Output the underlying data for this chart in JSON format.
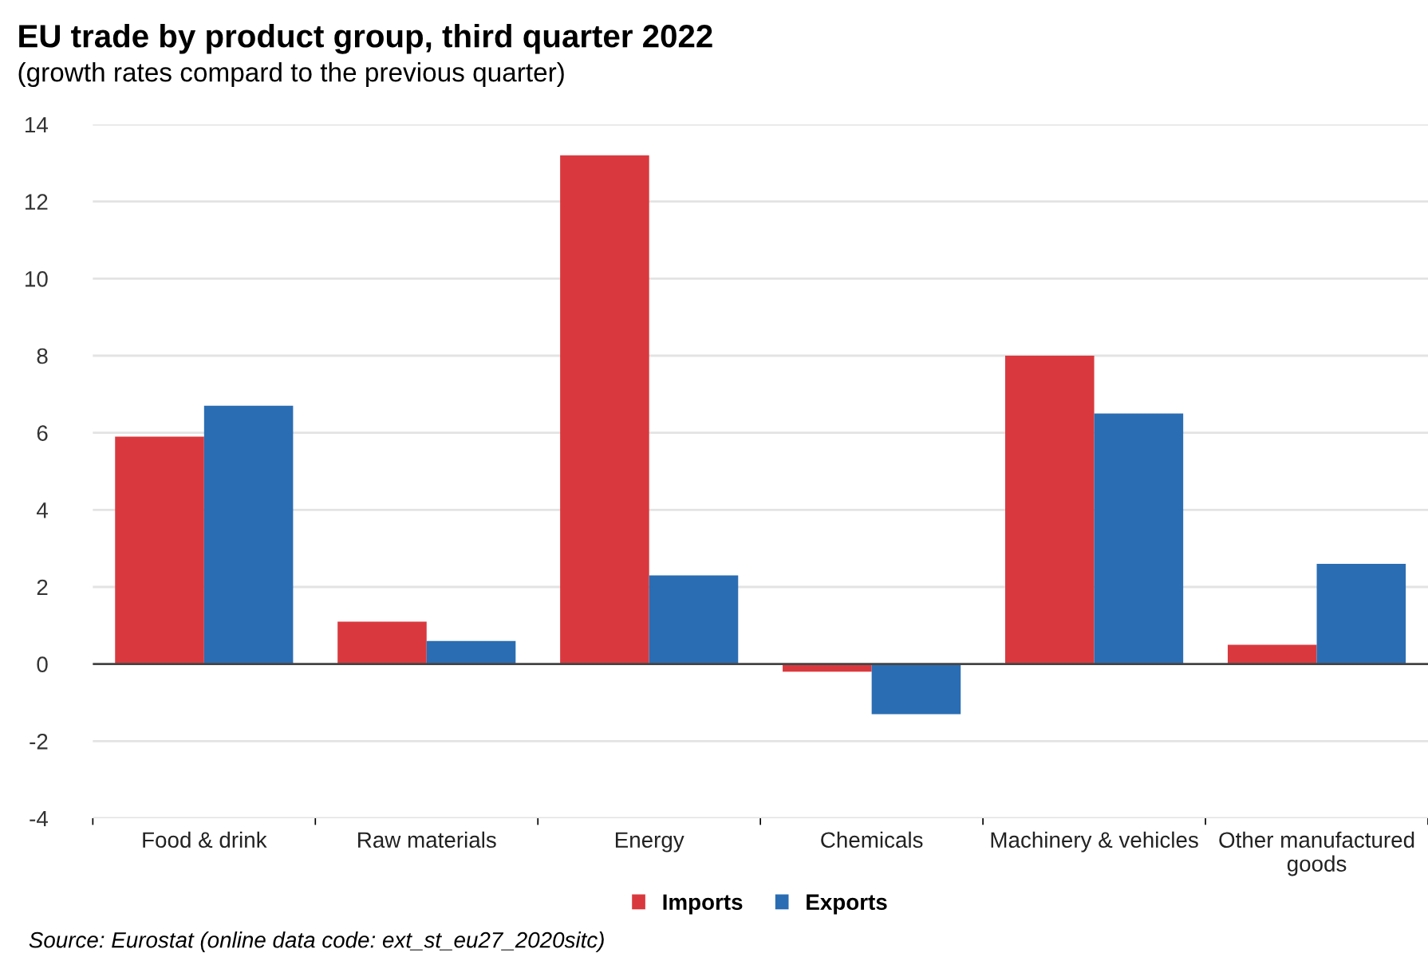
{
  "chart_data": {
    "type": "bar",
    "title": "EU trade by product group, third quarter 2022",
    "subtitle": "(growth rates compard to the previous quarter)",
    "categories": [
      "Food & drink",
      "Raw materials",
      "Energy",
      "Chemicals",
      "Machinery & vehicles",
      "Other manufactured\ngoods"
    ],
    "series": [
      {
        "name": "Imports",
        "color": "#d9393e",
        "values": [
          5.9,
          1.1,
          13.2,
          -0.2,
          8.0,
          0.5
        ]
      },
      {
        "name": "Exports",
        "color": "#2a6db3",
        "values": [
          6.7,
          0.6,
          2.3,
          -1.3,
          6.5,
          2.6
        ]
      }
    ],
    "ylim": [
      -4,
      14
    ],
    "yticks": [
      -4,
      -2,
      0,
      2,
      4,
      6,
      8,
      10,
      12,
      14
    ],
    "grid": "y",
    "legend": "bottom",
    "annotations": [
      "Source: Eurostat (online data code: ext_st_eu27_2020sitc)"
    ]
  }
}
